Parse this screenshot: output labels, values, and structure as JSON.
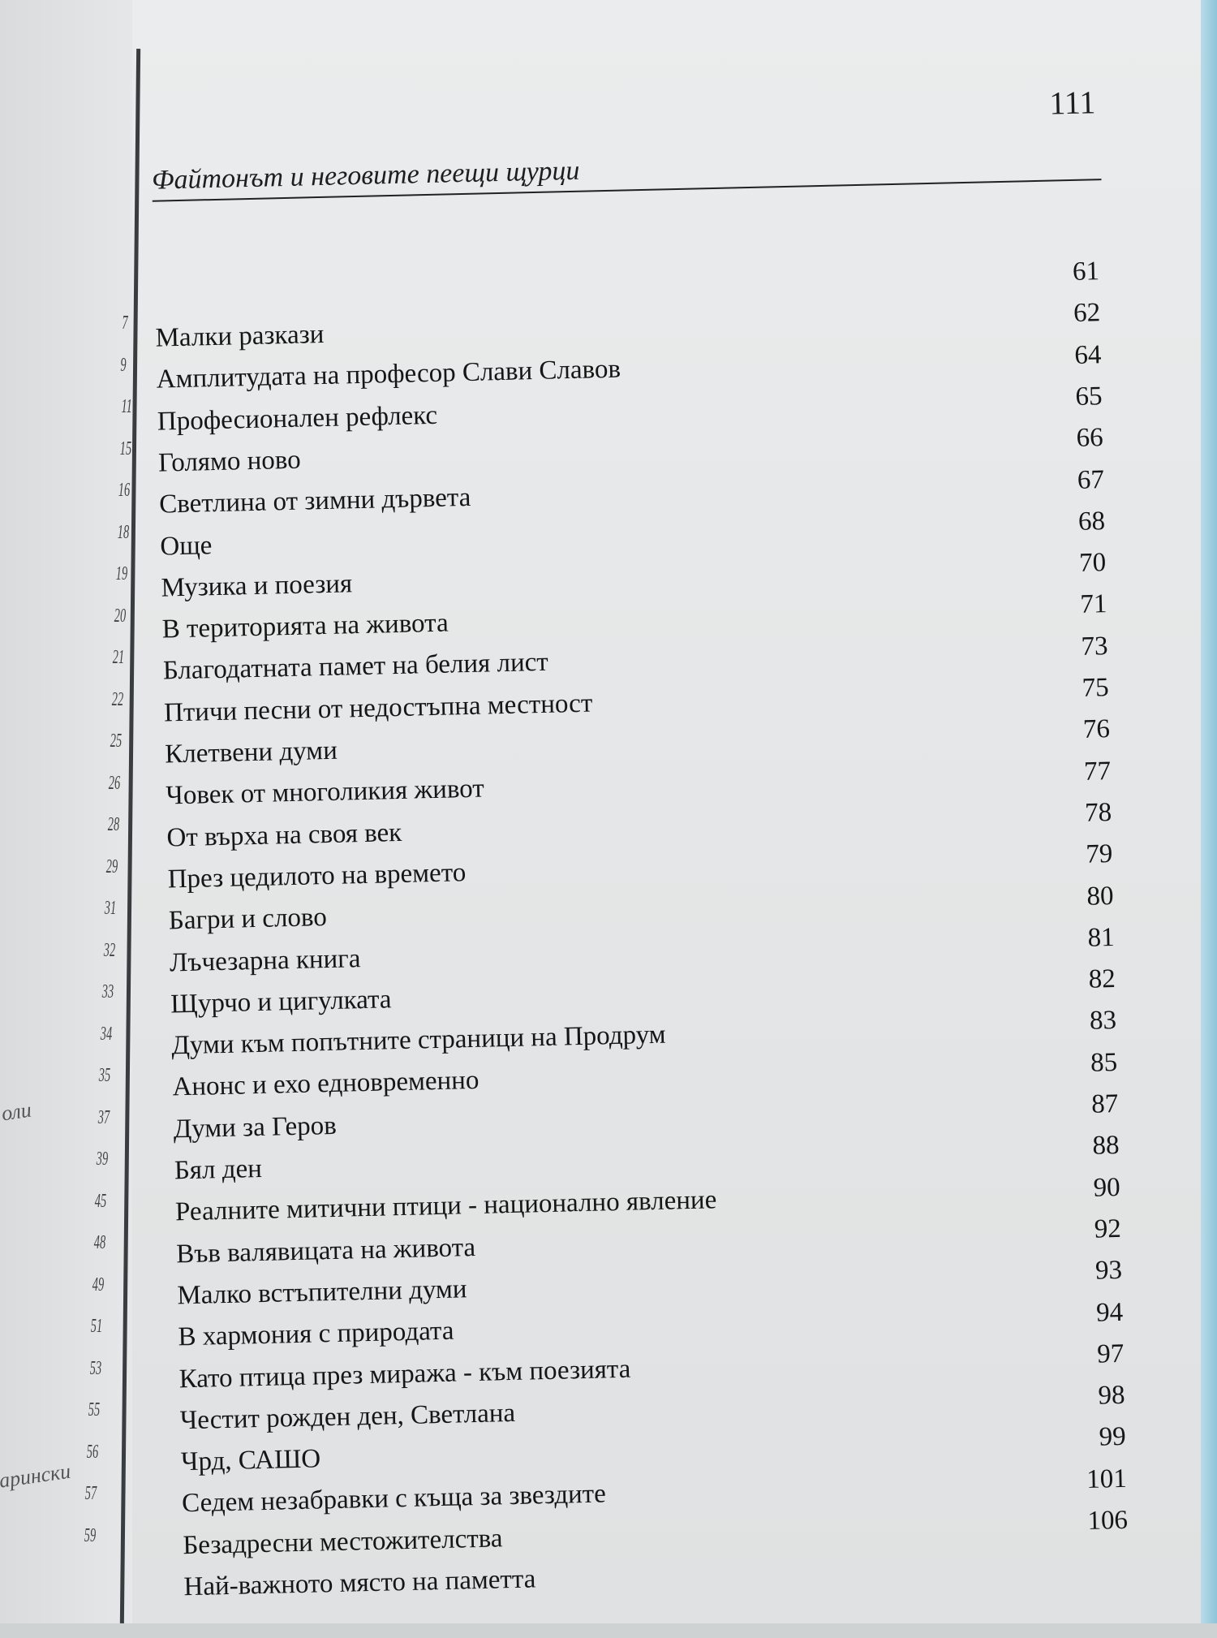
{
  "header": {
    "running_title": "Файтонът и неговите пеещи щурци",
    "page_number": "111"
  },
  "left_page": {
    "page_refs": [
      "7",
      "9",
      "11",
      "15",
      "16",
      "18",
      "19",
      "20",
      "21",
      "22",
      "25",
      "26",
      "28",
      "29",
      "31",
      "32",
      "33",
      "34",
      "35",
      "37",
      "39",
      "45",
      "48",
      "49",
      "51",
      "53",
      "55",
      "56",
      "57",
      "59"
    ],
    "fragments": [
      "оли",
      "Царински"
    ]
  },
  "toc": [
    {
      "title": "Малки разкази",
      "page": "61"
    },
    {
      "title": "Амплитудата на професор Слави Славов",
      "page": "62"
    },
    {
      "title": "Професионален рефлекс",
      "page": "64"
    },
    {
      "title": "Голямо ново",
      "page": "65"
    },
    {
      "title": "Светлина от зимни дървета",
      "page": "66"
    },
    {
      "title": "Още",
      "page": "67"
    },
    {
      "title": "Музика и поезия",
      "page": "68"
    },
    {
      "title": "В територията на живота",
      "page": "70"
    },
    {
      "title": "Благодатната памет на белия лист",
      "page": "71"
    },
    {
      "title": "Птичи песни от недостъпна местност",
      "page": "73"
    },
    {
      "title": "Клетвени думи",
      "page": "75"
    },
    {
      "title": "Човек от многоликия живот",
      "page": "76"
    },
    {
      "title": "От върха на своя век",
      "page": "77"
    },
    {
      "title": "През цедилото на времето",
      "page": "78"
    },
    {
      "title": "Багри и слово",
      "page": "79"
    },
    {
      "title": "Лъчезарна книга",
      "page": "80"
    },
    {
      "title": "Щурчо и цигулката",
      "page": "81"
    },
    {
      "title": "Думи към попътните страници на Продрум",
      "page": "82"
    },
    {
      "title": "Анонс и ехо едновременно",
      "page": "83"
    },
    {
      "title": "Думи за Геров",
      "page": "85"
    },
    {
      "title": "Бял ден",
      "page": "87"
    },
    {
      "title": "Реалните митични птици - национално явление",
      "page": "88"
    },
    {
      "title": "Във валявицата на живота",
      "page": "90"
    },
    {
      "title": "Малко встъпителни думи",
      "page": "92"
    },
    {
      "title": "В хармония с природата",
      "page": "93"
    },
    {
      "title": "Като птица през миража - към поезията",
      "page": "94"
    },
    {
      "title": "Честит рожден ден, Светлана",
      "page": "97"
    },
    {
      "title": "Чрд, САШО",
      "page": "98"
    },
    {
      "title": "Седем незабравки с къща за звездите",
      "page": "99"
    },
    {
      "title": "Безадресни местожителства",
      "page": "101"
    },
    {
      "title": "Най-важното място на паметта",
      "page": "106"
    }
  ]
}
